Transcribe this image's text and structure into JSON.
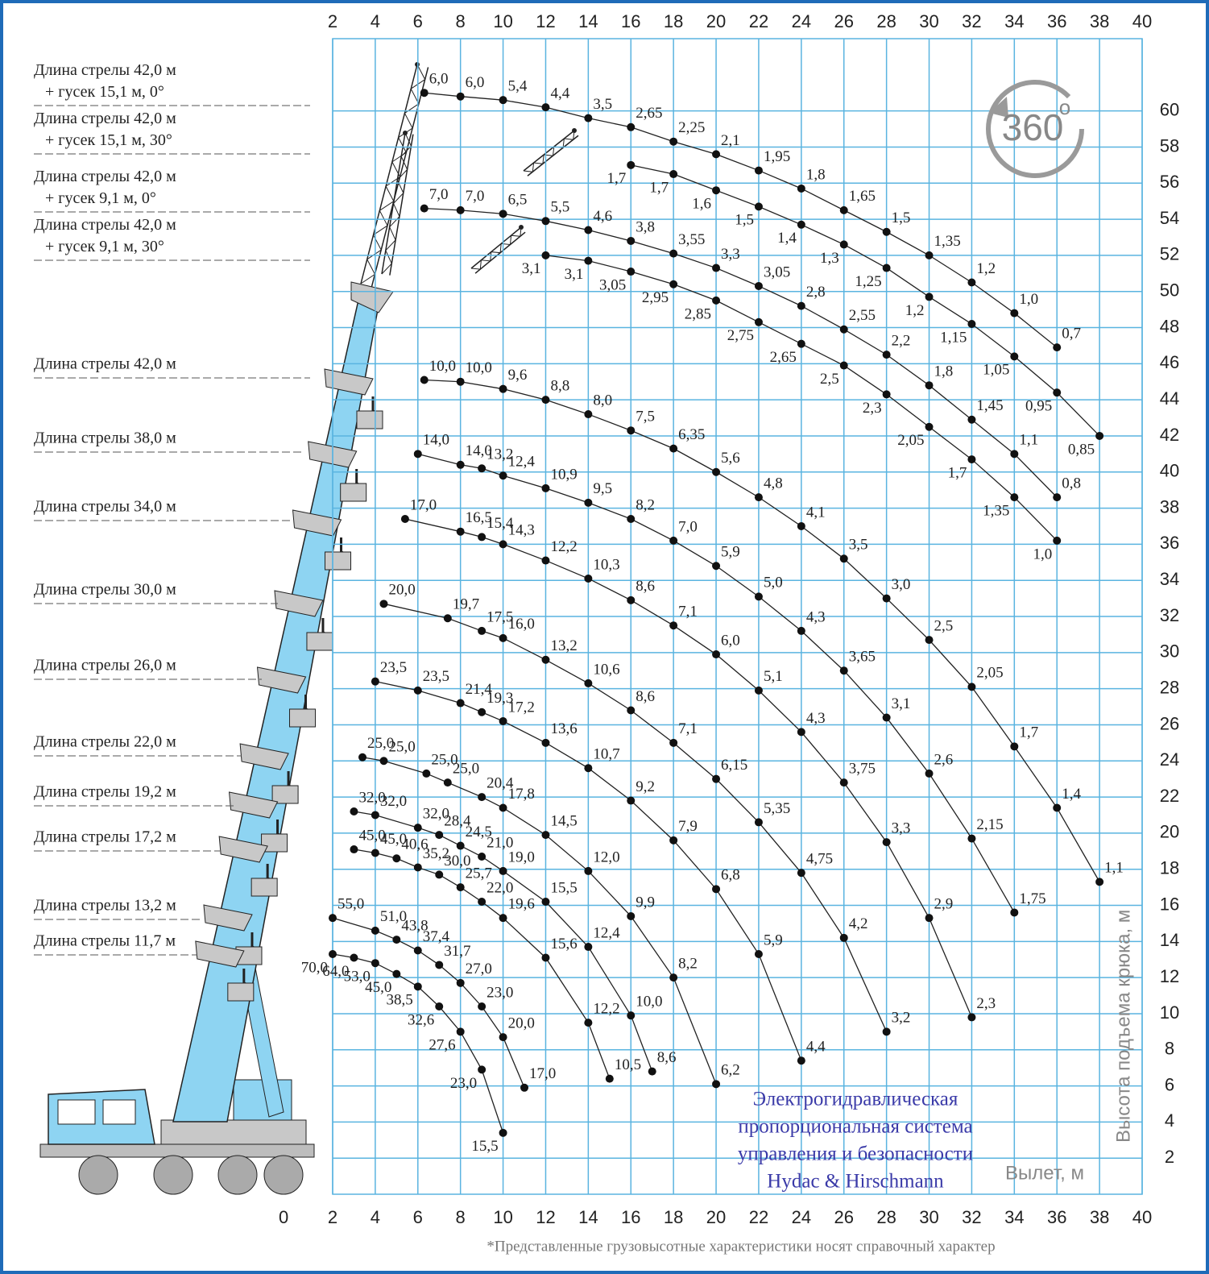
{
  "chart_data": {
    "type": "line",
    "x_label": "Вылет, м",
    "y_label": "Высота подъема крюка, м",
    "xlim": [
      2,
      40
    ],
    "ylim": [
      0,
      64
    ],
    "xticks": [
      0,
      2,
      4,
      6,
      8,
      10,
      12,
      14,
      16,
      18,
      20,
      22,
      24,
      26,
      28,
      30,
      32,
      34,
      36,
      38,
      40
    ],
    "x2ticks": [
      2,
      4,
      6,
      8,
      10,
      12,
      14,
      16,
      18,
      20,
      22,
      24,
      26,
      28,
      30,
      32,
      34,
      36,
      38,
      40
    ],
    "yticks": [
      2,
      4,
      6,
      8,
      10,
      12,
      14,
      16,
      18,
      20,
      22,
      24,
      26,
      28,
      30,
      32,
      34,
      36,
      38,
      40,
      42,
      44,
      46,
      48,
      50,
      52,
      54,
      56,
      58,
      60
    ],
    "grid": true,
    "grid_color": "#5ab4e0",
    "line_color": "#222222",
    "badge": "360",
    "badge_sup": "o",
    "note": [
      "Электрогидравлическая",
      "пропорциональная система",
      "управления и безопасности",
      "Hydac & Hirschmann"
    ],
    "footnote": "*Представленные грузовысотные характеристики носят справочный характер",
    "series": [
      {
        "name": "Длина стрелы 42,0 м + гусек 15,1 м, 0°",
        "x": [
          6.3,
          8,
          10,
          12,
          14,
          16,
          18,
          20,
          22,
          24,
          26,
          28,
          30,
          32,
          34,
          36
        ],
        "values": [
          61.0,
          60.8,
          60.6,
          60.2,
          59.6,
          59.1,
          58.3,
          57.6,
          56.7,
          55.7,
          54.5,
          53.3,
          52.0,
          50.5,
          48.8,
          46.9
        ],
        "load_labels": [
          "6,0",
          "6,0",
          "5,4",
          "4,4",
          "3,5",
          "2,65",
          "2,25",
          "2,1",
          "1,95",
          "1,8",
          "1,65",
          "1,5",
          "1,35",
          "1,2",
          "1,0",
          "0,7"
        ]
      },
      {
        "name": "Длина стрелы 42,0 м + гусек 15,1 м, 30°",
        "x": [
          16,
          18,
          20,
          22,
          24,
          26,
          28,
          30,
          32,
          34,
          36,
          38
        ],
        "values": [
          57.0,
          56.5,
          55.6,
          54.7,
          53.7,
          52.6,
          51.3,
          49.7,
          48.2,
          46.4,
          44.4,
          42.0
        ],
        "load_labels": [
          "1,7",
          "1,7",
          "1,6",
          "1,5",
          "1,4",
          "1,3",
          "1,25",
          "1,2",
          "1,15",
          "1,05",
          "0,95",
          "0,85"
        ]
      },
      {
        "name": "Длина стрелы 42,0 м + гусек 9,1 м, 0°",
        "x": [
          6.3,
          8,
          10,
          12,
          14,
          16,
          18,
          20,
          22,
          24,
          26,
          28,
          30,
          32,
          34,
          36
        ],
        "values": [
          54.6,
          54.5,
          54.3,
          53.9,
          53.4,
          52.8,
          52.1,
          51.3,
          50.3,
          49.2,
          47.9,
          46.5,
          44.8,
          42.9,
          41.0,
          38.6
        ],
        "load_labels": [
          "7,0",
          "7,0",
          "6,5",
          "5,5",
          "4,6",
          "3,8",
          "3,55",
          "3,3",
          "3,05",
          "2,8",
          "2,55",
          "2,2",
          "1,8",
          "1,45",
          "1,1",
          "0,8"
        ]
      },
      {
        "name": "Длина стрелы 42,0 м + гусек 9,1 м, 30°",
        "x": [
          12,
          14,
          16,
          18,
          20,
          22,
          24,
          26,
          28,
          30,
          32,
          34,
          36
        ],
        "values": [
          52.0,
          51.7,
          51.1,
          50.4,
          49.5,
          48.3,
          47.1,
          45.9,
          44.3,
          42.5,
          40.7,
          38.6,
          36.2
        ],
        "load_labels": [
          "3,1",
          "3,1",
          "3,05",
          "2,95",
          "2,85",
          "2,75",
          "2,65",
          "2,5",
          "2,3",
          "2,05",
          "1,7",
          "1,35",
          "1,0"
        ]
      },
      {
        "name": "Длина стрелы 42,0 м",
        "x": [
          6.3,
          8,
          10,
          12,
          14,
          16,
          18,
          20,
          22,
          24,
          26,
          28,
          30,
          32,
          34,
          36,
          38
        ],
        "values": [
          45.1,
          45.0,
          44.6,
          44.0,
          43.2,
          42.3,
          41.3,
          40.0,
          38.6,
          37.0,
          35.2,
          33.0,
          30.7,
          28.1,
          24.8,
          21.4,
          17.3
        ],
        "load_labels": [
          "10,0",
          "10,0",
          "9,6",
          "8,8",
          "8,0",
          "7,5",
          "6,35",
          "5,6",
          "4,8",
          "4,1",
          "3,5",
          "3,0",
          "2,5",
          "2,05",
          "1,7",
          "1,4",
          "1,1"
        ]
      },
      {
        "name": "Длина стрелы 38,0 м",
        "x": [
          6,
          8,
          9,
          10,
          12,
          14,
          16,
          18,
          20,
          22,
          24,
          26,
          28,
          30,
          32,
          34
        ],
        "values": [
          41.0,
          40.4,
          40.2,
          39.8,
          39.1,
          38.3,
          37.4,
          36.2,
          34.8,
          33.1,
          31.2,
          29.0,
          26.4,
          23.3,
          19.7,
          15.6
        ],
        "load_labels": [
          "14,0",
          "14,0",
          "13,2",
          "12,4",
          "10,9",
          "9,5",
          "8,2",
          "7,0",
          "5,9",
          "5,0",
          "4,3",
          "3,65",
          "3,1",
          "2,6",
          "2,15",
          "1,75"
        ]
      },
      {
        "name": "Длина стрелы 34,0 м",
        "x": [
          5.4,
          8,
          9,
          10,
          12,
          14,
          16,
          18,
          20,
          22,
          24,
          26,
          28,
          30,
          32
        ],
        "values": [
          37.4,
          36.7,
          36.4,
          36.0,
          35.1,
          34.1,
          32.9,
          31.5,
          29.9,
          27.9,
          25.6,
          22.8,
          19.5,
          15.3,
          9.8
        ],
        "load_labels": [
          "17,0",
          "16,5",
          "15,4",
          "14,3",
          "12,2",
          "10,3",
          "8,6",
          "7,1",
          "6,0",
          "5,1",
          "4,3",
          "3,75",
          "3,3",
          "2,9",
          "2,3"
        ]
      },
      {
        "name": "Длина стрелы 30,0 м",
        "x": [
          4.4,
          7.4,
          9,
          10,
          12,
          14,
          16,
          18,
          20,
          22,
          24,
          26,
          28
        ],
        "values": [
          32.7,
          31.9,
          31.2,
          30.8,
          29.6,
          28.3,
          26.8,
          25.0,
          23.0,
          20.6,
          17.8,
          14.2,
          9.0
        ],
        "load_labels": [
          "20,0",
          "19,7",
          "17,5",
          "16,0",
          "13,2",
          "10,6",
          "8,6",
          "7,1",
          "6,15",
          "5,35",
          "4,75",
          "4,2",
          "3,2"
        ]
      },
      {
        "name": "Длина стрелы 26,0 м",
        "x": [
          4,
          6,
          8,
          9,
          10,
          12,
          14,
          16,
          18,
          20,
          22,
          24
        ],
        "values": [
          28.4,
          27.9,
          27.2,
          26.7,
          26.2,
          25.0,
          23.6,
          21.8,
          19.6,
          16.9,
          13.3,
          7.4
        ],
        "load_labels": [
          "23,5",
          "23,5",
          "21,4",
          "19,3",
          "17,2",
          "13,6",
          "10,7",
          "9,2",
          "7,9",
          "6,8",
          "5,9",
          "4,4"
        ]
      },
      {
        "name": "Длина стрелы 22,0 м",
        "x": [
          3.4,
          4.4,
          6.4,
          7.4,
          9,
          10,
          12,
          14,
          16,
          18,
          20
        ],
        "values": [
          24.2,
          24.0,
          23.3,
          22.8,
          22.0,
          21.4,
          19.9,
          17.9,
          15.4,
          12.0,
          6.1
        ],
        "load_labels": [
          "25,0",
          "25,0",
          "25,0",
          "25,0",
          "20,4",
          "17,8",
          "14,5",
          "12,0",
          "9,9",
          "8,2",
          "6,2"
        ]
      },
      {
        "name": "Длина стрелы 19,2 м",
        "x": [
          3,
          4,
          6,
          7,
          8,
          9,
          10,
          12,
          14,
          16,
          17
        ],
        "values": [
          21.2,
          21.0,
          20.3,
          19.9,
          19.3,
          18.7,
          17.9,
          16.2,
          13.7,
          9.9,
          6.8
        ],
        "load_labels": [
          "32,0",
          "32,0",
          "32,0",
          "28,4",
          "24,5",
          "21,0",
          "19,0",
          "15,5",
          "12,4",
          "10,0",
          "8,6"
        ]
      },
      {
        "name": "Длина стрелы 17,2 м",
        "x": [
          3,
          4,
          5,
          6,
          7,
          8,
          9,
          10,
          12,
          14,
          15
        ],
        "values": [
          19.1,
          18.9,
          18.6,
          18.1,
          17.7,
          17.0,
          16.2,
          15.3,
          13.1,
          9.5,
          6.4
        ],
        "load_labels": [
          "45,0",
          "45,0",
          "40,6",
          "35,2",
          "30,0",
          "25,7",
          "22,0",
          "19,6",
          "15,6",
          "12,2",
          "10,5"
        ]
      },
      {
        "name": "Длина стрелы 13,2 м",
        "x": [
          2,
          4,
          5,
          6,
          7,
          8,
          9,
          10,
          11
        ],
        "values": [
          15.3,
          14.6,
          14.1,
          13.5,
          12.7,
          11.7,
          10.4,
          8.7,
          5.9
        ],
        "load_labels": [
          "55,0",
          "51,0",
          "43,8",
          "37,4",
          "31,7",
          "27,0",
          "23,0",
          "20,0",
          "17,0"
        ]
      },
      {
        "name": "Длина стрелы 11,7 м",
        "x": [
          2,
          3,
          4,
          5,
          6,
          7,
          8,
          9,
          10
        ],
        "values": [
          13.3,
          13.1,
          12.8,
          12.2,
          11.5,
          10.4,
          9.0,
          6.9,
          3.4
        ],
        "load_labels": [
          "70,0",
          "64,0",
          "53,0",
          "45,0",
          "38,5",
          "32,6",
          "27,6",
          "23,0",
          "15,5"
        ]
      }
    ]
  }
}
